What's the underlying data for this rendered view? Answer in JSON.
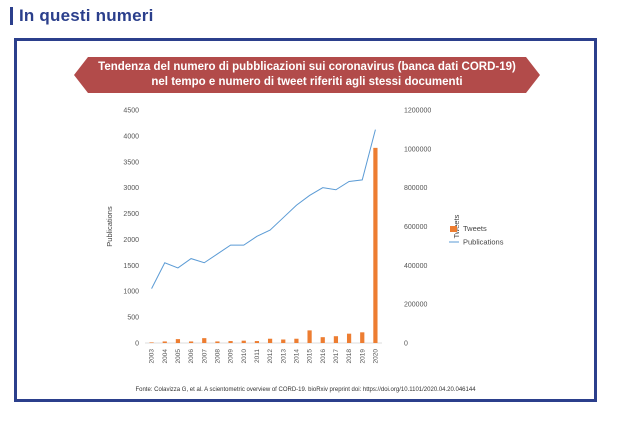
{
  "header": {
    "title": "In questi numeri"
  },
  "banner": {
    "line1": "Tendenza del numero di pubblicazioni sui coronavirus (banca dati CORD-19)",
    "line2": "nel tempo e numero di tweet riferiti agli stessi documenti"
  },
  "source": "Fonte: Colavizza G, et al. A scientometric overview of CORD-19. bioRxiv preprint doi: https://doi.org/10.1101/2020.04.20.046144",
  "colors": {
    "tweets": "#ed7d31",
    "publications": "#5b9bd5",
    "frame": "#2b3f8c",
    "banner": "#b24b4a"
  },
  "chart_data": {
    "type": "bar+line",
    "categories": [
      "2003",
      "2004",
      "2005",
      "2006",
      "2007",
      "2008",
      "2009",
      "2010",
      "2011",
      "2012",
      "2013",
      "2014",
      "2015",
      "2016",
      "2017",
      "2018",
      "2019",
      "2020"
    ],
    "xlabel": "",
    "ylabel_left": "Publications",
    "ylabel_right": "Tweets",
    "ylim_left": [
      0,
      4500
    ],
    "yticks_left": [
      0,
      500,
      1000,
      1500,
      2000,
      2500,
      3000,
      3500,
      4000,
      4500
    ],
    "ylim_right": [
      0,
      1200000
    ],
    "yticks_right": [
      0,
      200000,
      400000,
      600000,
      800000,
      1000000,
      1200000
    ],
    "grid": false,
    "legend_position": "right",
    "series": [
      {
        "name": "Tweets",
        "type": "bar",
        "axis": "right",
        "values": [
          3000,
          8000,
          20000,
          8000,
          25000,
          8000,
          10000,
          12000,
          10000,
          22000,
          18000,
          22000,
          65000,
          30000,
          35000,
          48000,
          55000,
          1005000
        ]
      },
      {
        "name": "Publications",
        "type": "line",
        "axis": "left",
        "values": [
          1050,
          1550,
          1450,
          1630,
          1550,
          1720,
          1890,
          1890,
          2060,
          2180,
          2420,
          2660,
          2850,
          3000,
          2960,
          3120,
          3150,
          4120
        ]
      }
    ]
  }
}
